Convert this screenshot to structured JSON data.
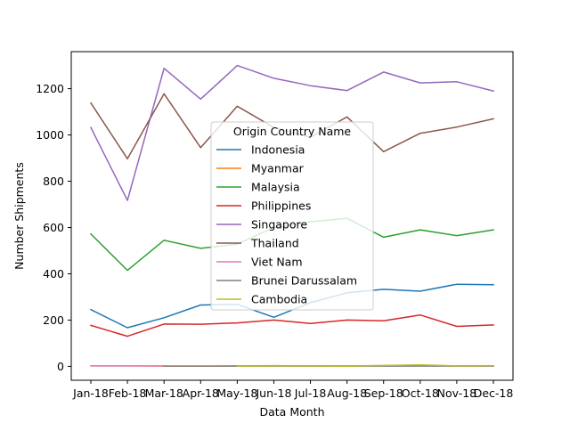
{
  "chart_data": {
    "type": "line",
    "title": "",
    "xlabel": "Data Month",
    "ylabel": "Number Shipments",
    "categories": [
      "Jan-18",
      "Feb-18",
      "Mar-18",
      "Apr-18",
      "May-18",
      "Jun-18",
      "Jul-18",
      "Aug-18",
      "Sep-18",
      "Oct-18",
      "Nov-18",
      "Dec-18"
    ],
    "ylim": [
      -60,
      1360
    ],
    "yticks": [
      0,
      200,
      400,
      600,
      800,
      1000,
      1200
    ],
    "grid": false,
    "legend": {
      "title": "Origin Country Name",
      "placement": "center"
    },
    "series": [
      {
        "name": "Indonesia",
        "color": "#1f77b4",
        "values": [
          245,
          167,
          210,
          265,
          268,
          212,
          275,
          318,
          333,
          325,
          355,
          353
        ]
      },
      {
        "name": "Myanmar",
        "color": "#ff7f0e",
        "values": [
          2,
          2,
          1,
          1,
          2,
          3,
          2,
          2,
          3,
          5,
          2,
          2
        ]
      },
      {
        "name": "Malaysia",
        "color": "#2ca02c",
        "values": [
          572,
          415,
          545,
          510,
          528,
          600,
          625,
          640,
          558,
          590,
          565,
          590
        ]
      },
      {
        "name": "Philippines",
        "color": "#d62728",
        "values": [
          177,
          130,
          183,
          182,
          188,
          200,
          185,
          200,
          197,
          222,
          173,
          179
        ]
      },
      {
        "name": "Singapore",
        "color": "#9467bd",
        "values": [
          1032,
          717,
          1288,
          1155,
          1300,
          1245,
          1213,
          1192,
          1272,
          1225,
          1230,
          1190
        ]
      },
      {
        "name": "Thailand",
        "color": "#8c564b",
        "values": [
          1138,
          897,
          1178,
          945,
          1124,
          1032,
          990,
          1078,
          928,
          1007,
          1034,
          1070
        ]
      },
      {
        "name": "Viet Nam",
        "color": "#e377c2",
        "values": [
          2,
          2,
          2,
          null,
          null,
          null,
          null,
          null,
          null,
          null,
          null,
          null
        ]
      },
      {
        "name": "Brunei Darussalam",
        "color": "#7f7f7f",
        "values": [
          null,
          null,
          1,
          1,
          1,
          1,
          1,
          1,
          1,
          1,
          1,
          1
        ]
      },
      {
        "name": "Cambodia",
        "color": "#bcbd22",
        "values": [
          null,
          null,
          null,
          null,
          1,
          2,
          2,
          1,
          4,
          6,
          2,
          3
        ]
      }
    ]
  }
}
